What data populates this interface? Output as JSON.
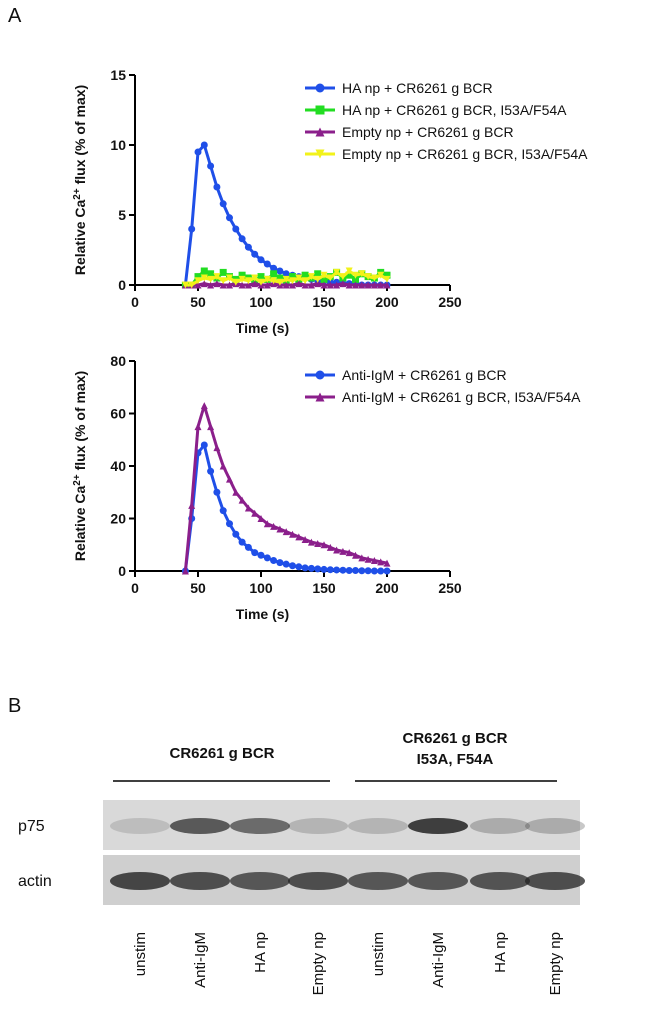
{
  "panel_labels": [
    "A",
    "B"
  ],
  "chart_data": [
    {
      "type": "line",
      "x_label": "Time (s)",
      "y_label": [
        "Relative Ca",
        "2+",
        " flux (% of max)"
      ],
      "xlim": [
        0,
        250
      ],
      "xticks": [
        0,
        50,
        100,
        150,
        200,
        250
      ],
      "ylim": [
        0,
        15
      ],
      "yticks": [
        0,
        5,
        10,
        15
      ],
      "x": [
        40,
        45,
        50,
        55,
        60,
        65,
        70,
        75,
        80,
        85,
        90,
        95,
        100,
        105,
        110,
        115,
        120,
        125,
        130,
        135,
        140,
        145,
        150,
        155,
        160,
        165,
        170,
        175,
        180,
        185,
        190,
        195,
        200
      ],
      "series": [
        {
          "name": "HA np + CR6261 g BCR",
          "color": "#1f4fe8",
          "marker": "circle",
          "values": [
            0,
            4,
            9.5,
            10,
            8.5,
            7,
            5.8,
            4.8,
            4,
            3.3,
            2.7,
            2.2,
            1.8,
            1.5,
            1.2,
            1,
            0.8,
            0.7,
            0.6,
            0.5,
            0.4,
            0.3,
            0.3,
            0.2,
            0.2,
            0.1,
            0.1,
            0.1,
            0,
            0,
            0,
            0,
            0
          ]
        },
        {
          "name": "HA np + CR6261 g BCR, I53A/F54A",
          "color": "#22dd22",
          "marker": "square",
          "values": [
            0,
            0,
            0.6,
            1,
            0.8,
            0.5,
            0.9,
            0.6,
            0.4,
            0.7,
            0.5,
            0.3,
            0.6,
            0.4,
            0.8,
            0.5,
            0.3,
            0.6,
            0.4,
            0.7,
            0.5,
            0.8,
            0.4,
            0.6,
            0.9,
            0.5,
            0.7,
            0.4,
            0.8,
            0.6,
            0.5,
            0.9,
            0.7
          ]
        },
        {
          "name": "Empty np + CR6261 g BCR",
          "color": "#8b1f8b",
          "marker": "triangle",
          "values": [
            0,
            0,
            0,
            0.1,
            0,
            0.1,
            0,
            0,
            0.1,
            0,
            0,
            0.1,
            0,
            0,
            0.1,
            0,
            0,
            0,
            0.1,
            0,
            0,
            0.1,
            0,
            0,
            0,
            0.1,
            0,
            0,
            0,
            0,
            0,
            0,
            0
          ]
        },
        {
          "name": "Empty np + CR6261 g BCR, I53A/F54A",
          "color": "#f2f21a",
          "marker": "triangle-down",
          "values": [
            0,
            0,
            0.3,
            0.5,
            0.4,
            0.6,
            0.3,
            0.5,
            0.2,
            0.4,
            0.3,
            0.5,
            0.2,
            0.4,
            0.3,
            0.2,
            0.4,
            0.3,
            0.5,
            0.3,
            0.6,
            0.4,
            0.7,
            0.5,
            0.9,
            0.6,
            1,
            0.7,
            0.8,
            0.6,
            0.5,
            0.7,
            0.4
          ]
        }
      ]
    },
    {
      "type": "line",
      "x_label": "Time (s)",
      "y_label": [
        "Relative Ca",
        "2+",
        " flux (% of max)"
      ],
      "xlim": [
        0,
        250
      ],
      "xticks": [
        0,
        50,
        100,
        150,
        200,
        250
      ],
      "ylim": [
        0,
        80
      ],
      "yticks": [
        0,
        20,
        40,
        60,
        80
      ],
      "x": [
        40,
        45,
        50,
        55,
        60,
        65,
        70,
        75,
        80,
        85,
        90,
        95,
        100,
        105,
        110,
        115,
        120,
        125,
        130,
        135,
        140,
        145,
        150,
        155,
        160,
        165,
        170,
        175,
        180,
        185,
        190,
        195,
        200
      ],
      "series": [
        {
          "name": "Anti-IgM + CR6261 g BCR",
          "color": "#1f4fe8",
          "marker": "circle",
          "values": [
            0,
            20,
            45,
            48,
            38,
            30,
            23,
            18,
            14,
            11,
            9,
            7,
            6,
            5,
            4,
            3.2,
            2.6,
            2,
            1.6,
            1.2,
            1,
            0.8,
            0.6,
            0.5,
            0.4,
            0.3,
            0.2,
            0.2,
            0.1,
            0.1,
            0,
            0,
            0
          ]
        },
        {
          "name": "Anti-IgM + CR6261 g BCR, I53A/F54A",
          "color": "#8b1f8b",
          "marker": "triangle",
          "values": [
            0,
            25,
            55,
            63,
            55,
            47,
            40,
            35,
            30,
            27,
            24,
            22,
            20,
            18,
            17,
            16,
            15,
            14,
            13,
            12,
            11,
            10.5,
            10,
            9,
            8,
            7.5,
            7,
            6,
            5,
            4.5,
            4,
            3.5,
            3
          ]
        }
      ]
    }
  ],
  "blot": {
    "groups": [
      [
        "CR6261 g BCR"
      ],
      [
        "CR6261 g BCR",
        "I53A, F54A"
      ]
    ],
    "rows": [
      "p75",
      "actin"
    ],
    "lanes": [
      "unstim",
      "Anti-IgM",
      "HA np",
      "Empty np",
      "unstim",
      "Anti-IgM",
      "HA np",
      "Empty np"
    ]
  }
}
